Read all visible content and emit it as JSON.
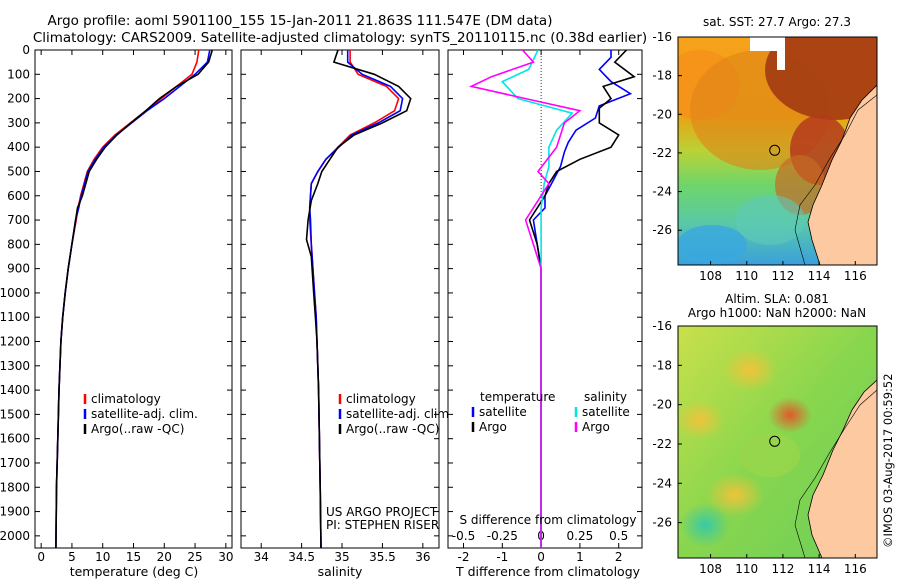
{
  "header": {
    "title_line1": "Argo profile: aoml 5901100_155 15-Jan-2011 21.863S 111.547E (DM data)",
    "title_line2": "Climatology: CARS2009. Satellite-adjusted climatology: synTS_20110115.nc (0.38d earlier)"
  },
  "project": {
    "line1": "US ARGO PROJECT",
    "line2": "PI: STEPHEN RISER"
  },
  "timestamp": "©IMOS 03-Aug-2017 00:59:52",
  "colors": {
    "climatology": "#ff0000",
    "satellite": "#0000ff",
    "argo": "#000000",
    "satellite_s": "#00e5e5",
    "argo_s": "#ff00ff",
    "land": "#fcc9a0"
  },
  "chart_data": [
    {
      "id": "temperature",
      "type": "line",
      "xlabel": "temperature (deg C)",
      "ylabel": "",
      "xlim": [
        -1,
        31
      ],
      "ylim": [
        2050,
        0
      ],
      "xticks": [
        0,
        5,
        10,
        15,
        20,
        25,
        30
      ],
      "yticks": [
        0,
        100,
        200,
        300,
        400,
        500,
        600,
        700,
        800,
        900,
        1000,
        1100,
        1200,
        1300,
        1400,
        1500,
        1600,
        1700,
        1800,
        1900,
        2000
      ],
      "legend": [
        "climatology",
        "satellite-adj. clim.",
        "Argo(..raw -QC)"
      ],
      "series": [
        {
          "name": "climatology",
          "color": "#ff0000",
          "x": [
            25.6,
            25.3,
            24.5,
            22.0,
            19.5,
            17.0,
            14.5,
            12.0,
            10.0,
            8.6,
            7.5,
            6.4,
            6.0,
            5.7,
            5.0,
            4.4,
            3.9,
            3.5,
            3.2,
            2.9,
            2.7,
            2.5,
            2.4
          ],
          "y": [
            0,
            50,
            100,
            150,
            200,
            250,
            300,
            350,
            400,
            450,
            500,
            600,
            650,
            700,
            800,
            900,
            1000,
            1100,
            1200,
            1400,
            1600,
            1800,
            2050
          ]
        },
        {
          "name": "satellite-adj. clim.",
          "color": "#0000ff",
          "x": [
            27.4,
            27.0,
            25.0,
            22.5,
            20.0,
            17.2,
            14.7,
            12.2,
            10.2,
            8.8,
            7.6,
            6.5,
            6.1,
            5.6,
            5.0,
            4.4,
            3.9,
            3.5,
            3.2,
            2.9,
            2.7,
            2.5,
            2.4
          ],
          "y": [
            0,
            50,
            100,
            150,
            200,
            250,
            300,
            350,
            400,
            450,
            500,
            600,
            650,
            700,
            800,
            900,
            1000,
            1100,
            1200,
            1400,
            1600,
            1800,
            2050
          ]
        },
        {
          "name": "Argo(..raw -QC)",
          "color": "#000000",
          "x": [
            27.8,
            27.2,
            25.5,
            22.0,
            19.2,
            17.0,
            14.6,
            12.3,
            10.4,
            9.0,
            7.8,
            6.7,
            5.9,
            5.6,
            5.0,
            4.4,
            3.9,
            3.5,
            3.2,
            2.9,
            2.7,
            2.5,
            2.4
          ],
          "y": [
            0,
            50,
            100,
            150,
            200,
            250,
            300,
            350,
            400,
            450,
            500,
            600,
            650,
            700,
            800,
            900,
            1000,
            1100,
            1200,
            1400,
            1600,
            1800,
            2050
          ]
        }
      ]
    },
    {
      "id": "salinity",
      "type": "line",
      "xlabel": "salinity",
      "ylabel": "",
      "xlim": [
        33.75,
        36.2
      ],
      "ylim": [
        2050,
        0
      ],
      "xticks": [
        34,
        34.5,
        35,
        35.5,
        36
      ],
      "legend": [
        "climatology",
        "satellite-adj. clim.",
        "Argo(..raw -QC)"
      ],
      "series": [
        {
          "name": "climatology",
          "color": "#ff0000",
          "x": [
            35.1,
            35.1,
            35.2,
            35.55,
            35.7,
            35.65,
            35.4,
            35.1,
            34.95,
            34.8,
            34.7,
            34.62,
            34.6,
            34.6,
            34.62,
            34.64,
            34.66,
            34.68,
            34.69,
            34.71,
            34.72,
            34.73,
            34.74
          ],
          "y": [
            0,
            50,
            100,
            150,
            200,
            250,
            300,
            350,
            400,
            450,
            500,
            550,
            650,
            700,
            800,
            900,
            1000,
            1100,
            1200,
            1400,
            1600,
            1800,
            2050
          ]
        },
        {
          "name": "satellite-adj. clim.",
          "color": "#0000ff",
          "x": [
            35.07,
            35.07,
            35.25,
            35.6,
            35.75,
            35.72,
            35.45,
            35.12,
            34.96,
            34.8,
            34.7,
            34.62,
            34.6,
            34.61,
            34.62,
            34.64,
            34.66,
            34.68,
            34.69,
            34.71,
            34.72,
            34.73,
            34.74
          ],
          "y": [
            0,
            50,
            100,
            150,
            200,
            250,
            300,
            350,
            400,
            450,
            500,
            550,
            650,
            700,
            800,
            900,
            1000,
            1100,
            1200,
            1400,
            1600,
            1800,
            2050
          ]
        },
        {
          "name": "Argo(..raw -QC)",
          "color": "#000000",
          "x": [
            34.95,
            34.9,
            35.4,
            35.7,
            35.85,
            35.8,
            35.5,
            35.15,
            34.95,
            34.85,
            34.75,
            34.7,
            34.62,
            34.58,
            34.56,
            34.62,
            34.65,
            34.67,
            34.69,
            34.71,
            34.72,
            34.73,
            34.74
          ],
          "y": [
            0,
            50,
            100,
            150,
            200,
            250,
            300,
            350,
            400,
            450,
            500,
            550,
            620,
            700,
            780,
            850,
            1000,
            1100,
            1200,
            1400,
            1600,
            1800,
            2050
          ]
        }
      ]
    },
    {
      "id": "differences",
      "type": "line",
      "xlabel": "T difference from climatology",
      "x2label": "S difference from climatology",
      "xlim": [
        -2.4,
        2.6
      ],
      "ylim": [
        2050,
        0
      ],
      "xticks": [
        -2,
        -1,
        0,
        1,
        2
      ],
      "x2ticks": [
        -0.5,
        -0.25,
        0,
        0.25,
        0.5
      ],
      "legend_groups": [
        {
          "title": "temperature",
          "entries": [
            "satellite",
            "Argo"
          ]
        },
        {
          "title": "salinity",
          "entries": [
            "satellite",
            "Argo"
          ]
        }
      ],
      "series": [
        {
          "name": "satellite",
          "quantity": "temperature",
          "color": "#0000ff",
          "x": [
            1.8,
            1.8,
            1.5,
            1.8,
            2.3,
            1.5,
            1.4,
            0.9,
            0.7,
            0.6,
            0.5,
            0.3,
            0.1,
            0.1,
            -0.2,
            -0.1,
            0,
            0,
            0,
            0,
            0
          ],
          "y": [
            0,
            30,
            80,
            130,
            180,
            230,
            280,
            330,
            380,
            420,
            480,
            540,
            600,
            650,
            700,
            800,
            900,
            1000,
            1200,
            1600,
            2050
          ]
        },
        {
          "name": "Argo",
          "quantity": "temperature",
          "color": "#000000",
          "x": [
            2.2,
            1.9,
            2.4,
            1.6,
            1.8,
            1.5,
            1.5,
            2.0,
            1.8,
            1.0,
            0.4,
            0.2,
            0.1,
            -0.3,
            -0.1,
            0,
            0,
            0,
            0,
            0
          ],
          "y": [
            0,
            50,
            110,
            150,
            200,
            240,
            300,
            350,
            400,
            450,
            500,
            550,
            600,
            700,
            800,
            900,
            1000,
            1200,
            1600,
            2050
          ]
        },
        {
          "name": "satellite",
          "quantity": "salinity",
          "color": "#00e5e5",
          "x": [
            -0.02,
            -0.08,
            -0.25,
            -0.15,
            0.2,
            0.1,
            0.05,
            0.05,
            0.02,
            0,
            0,
            0,
            0
          ],
          "y": [
            0,
            80,
            130,
            200,
            260,
            330,
            400,
            480,
            550,
            650,
            900,
            1500,
            2050
          ]
        },
        {
          "name": "Argo",
          "quantity": "salinity",
          "color": "#ff00ff",
          "x": [
            -0.12,
            -0.05,
            -0.32,
            -0.45,
            -0.1,
            0.25,
            0.15,
            0.1,
            -0.02,
            0.05,
            -0.1,
            0,
            0,
            0
          ],
          "y": [
            0,
            50,
            110,
            150,
            200,
            250,
            300,
            400,
            500,
            550,
            700,
            900,
            1400,
            2050
          ]
        }
      ]
    },
    {
      "id": "sst-map",
      "type": "heatmap",
      "title": "sat. SST: 27.7 Argo: 27.3",
      "xlim": [
        106.2,
        117.2
      ],
      "ylim": [
        -27.8,
        -16
      ],
      "xticks": [
        108,
        110,
        112,
        114,
        116
      ],
      "yticks": [
        -16,
        -18,
        -20,
        -22,
        -24,
        -26
      ],
      "argo_position": {
        "lon": 111.547,
        "lat": -21.863
      }
    },
    {
      "id": "sla-map",
      "type": "heatmap",
      "title": "Altim. SLA: 0.081",
      "subtitle": "Argo h1000: NaN h2000: NaN",
      "xlim": [
        106.2,
        117.2
      ],
      "ylim": [
        -27.8,
        -16
      ],
      "xticks": [
        108,
        110,
        112,
        114,
        116
      ],
      "yticks": [
        -16,
        -18,
        -20,
        -22,
        -24,
        -26
      ],
      "argo_position": {
        "lon": 111.547,
        "lat": -21.863
      }
    }
  ]
}
